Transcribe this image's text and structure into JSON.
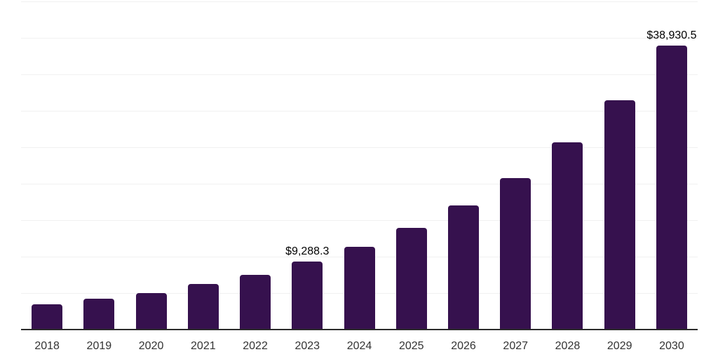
{
  "chart_data": {
    "type": "bar",
    "title": "",
    "xlabel": "",
    "ylabel": "",
    "categories": [
      "2018",
      "2019",
      "2020",
      "2021",
      "2022",
      "2023",
      "2024",
      "2025",
      "2026",
      "2027",
      "2028",
      "2029",
      "2030"
    ],
    "values": [
      3500,
      4200,
      5000,
      6250,
      7500,
      9288.3,
      11300,
      13950,
      17000,
      20800,
      25650,
      31400,
      38930.5
    ],
    "bar_labels": [
      "",
      "",
      "",
      "",
      "",
      "$9,288.3",
      "",
      "",
      "",
      "",
      "",
      "",
      "$38,930.5"
    ],
    "ylim": [
      0,
      45000
    ],
    "gridline_step": 5000,
    "grid": "horizontal",
    "y_axis_labels_visible": false,
    "legend_position": "none",
    "colors": {
      "bar": "#36114E",
      "grid": "#f1f1f1",
      "axis": "#2b2b2b",
      "tick_label": "#333333",
      "value_label": "#000000",
      "background": "#ffffff"
    }
  }
}
